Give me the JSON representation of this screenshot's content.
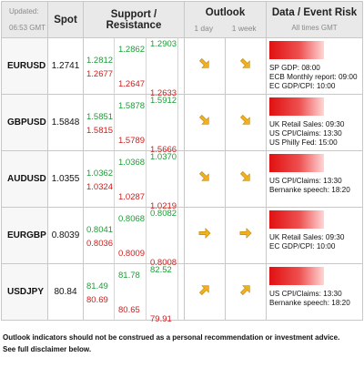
{
  "header": {
    "updated_label": "Updated:",
    "updated_time": "06:53 GMT",
    "spot": "Spot",
    "support_resistance": "Support / Resistance",
    "outlook": "Outlook",
    "outlook_1day": "1 day",
    "outlook_1week": "1 week",
    "data_event_risk": "Data / Event Risk",
    "all_times": "All times GMT"
  },
  "rows": [
    {
      "symbol": "EURUSD",
      "spot": "1.2741",
      "levels": [
        {
          "value": "1.2903",
          "color": "green"
        },
        {
          "value": "1.2862",
          "color": "green"
        },
        {
          "value": "1.2812",
          "color": "green"
        },
        {
          "value": "1.2677",
          "color": "red"
        },
        {
          "value": "1.2647",
          "color": "red"
        },
        {
          "value": "1.2633",
          "color": "red"
        }
      ],
      "outlook_1day": "down-right-arrow",
      "outlook_1week": "down-right-arrow",
      "risk_level": 0.85,
      "events": [
        "SP GDP: 08:00",
        "ECB Monthly report: 09:00",
        "EC GDP/CPI: 10:00"
      ]
    },
    {
      "symbol": "GBPUSD",
      "spot": "1.5848",
      "levels": [
        {
          "value": "1.5912",
          "color": "green"
        },
        {
          "value": "1.5878",
          "color": "green"
        },
        {
          "value": "1.5851",
          "color": "green"
        },
        {
          "value": "1.5815",
          "color": "red"
        },
        {
          "value": "1.5789",
          "color": "red"
        },
        {
          "value": "1.5666",
          "color": "red"
        }
      ],
      "outlook_1day": "down-right-arrow",
      "outlook_1week": "down-right-arrow",
      "risk_level": 0.85,
      "events": [
        "UK Retail Sales: 09:30",
        "US CPI/Claims: 13:30",
        "US Philly Fed: 15:00"
      ]
    },
    {
      "symbol": "AUDUSD",
      "spot": "1.0355",
      "levels": [
        {
          "value": "1.0370",
          "color": "green"
        },
        {
          "value": "1.0368",
          "color": "green"
        },
        {
          "value": "1.0362",
          "color": "green"
        },
        {
          "value": "1.0324",
          "color": "red"
        },
        {
          "value": "1.0287",
          "color": "red"
        },
        {
          "value": "1.0219",
          "color": "red"
        }
      ],
      "outlook_1day": "down-right-arrow",
      "outlook_1week": "down-right-arrow",
      "risk_level": 0.85,
      "events": [
        "US CPI/Claims: 13:30",
        "Bernanke speech: 18:20"
      ]
    },
    {
      "symbol": "EURGBP",
      "spot": "0.8039",
      "levels": [
        {
          "value": "0.8082",
          "color": "green"
        },
        {
          "value": "0.8068",
          "color": "green"
        },
        {
          "value": "0.8041",
          "color": "green"
        },
        {
          "value": "0.8036",
          "color": "red"
        },
        {
          "value": "0.8009",
          "color": "red"
        },
        {
          "value": "0.8008",
          "color": "red"
        }
      ],
      "outlook_1day": "right-arrow",
      "outlook_1week": "right-arrow",
      "risk_level": 0.85,
      "events": [
        "UK Retail Sales: 09:30",
        "EC GDP/CPI: 10:00"
      ]
    },
    {
      "symbol": "USDJPY",
      "spot": "80.84",
      "levels": [
        {
          "value": "82.52",
          "color": "green"
        },
        {
          "value": "81.78",
          "color": "green"
        },
        {
          "value": "81.49",
          "color": "green"
        },
        {
          "value": "80.69",
          "color": "red"
        },
        {
          "value": "80.65",
          "color": "red"
        },
        {
          "value": "79.91",
          "color": "red"
        }
      ],
      "outlook_1day": "up-right-arrow",
      "outlook_1week": "up-right-arrow",
      "risk_level": 0.85,
      "events": [
        "US CPI/Claims: 13:30",
        "Bernanke speech: 18:20"
      ]
    }
  ],
  "footer": {
    "line1": "Outlook indicators should not be construed as a personal recommendation or investment advice.",
    "line2": "See full disclaimer below."
  },
  "colors": {
    "support": "#cc2020",
    "resistance": "#1a9e35",
    "arrow": "#f2b01e",
    "risk_bar": "#e01010"
  }
}
